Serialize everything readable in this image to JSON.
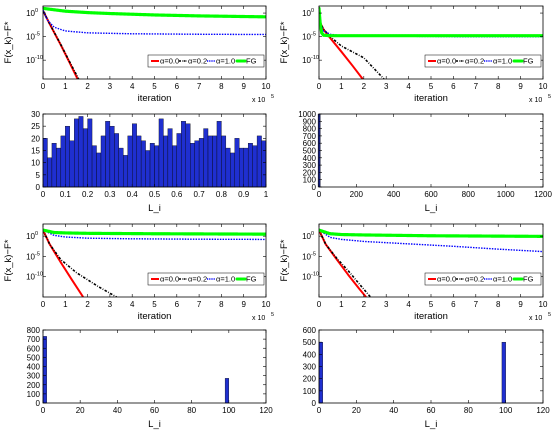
{
  "colors": {
    "alpha0": "#ff0000",
    "alpha02": "#000000",
    "alpha1": "#0000ff",
    "fg": "#00ff00",
    "bar_fill": "#1f2fd0",
    "bar_edge": "#000000"
  },
  "chart_data": [
    {
      "type": "line",
      "ylabel": "F(x_k)−F*",
      "xlabel": "iteration",
      "x_exponent": "x 10",
      "x_exponent_power": "5",
      "xlim": [
        0,
        10
      ],
      "ylim_exp": [
        -14,
        1.5
      ],
      "xticks": [
        "0",
        "1",
        "2",
        "3",
        "4",
        "5",
        "6",
        "7",
        "8",
        "9",
        "10"
      ],
      "yticks": [
        {
          "exp": 0,
          "label": "10"
        },
        {
          "exp": -5,
          "label": "10"
        },
        {
          "exp": -10,
          "label": "10"
        }
      ],
      "ytick_powers": [
        "0",
        "-5",
        "-10"
      ],
      "legend": [
        "α=0.0",
        "α=0.2",
        "α=1.0",
        "FG"
      ],
      "series": [
        {
          "name": "α=0.0",
          "style": "solid",
          "points": [
            [
              0,
              0.5
            ],
            [
              0.3,
              -2.3
            ],
            [
              0.8,
              -6.8
            ],
            [
              1.2,
              -10.6
            ],
            [
              1.55,
              -14
            ]
          ]
        },
        {
          "name": "α=0.2",
          "style": "dashdot",
          "points": [
            [
              0,
              0.5
            ],
            [
              0.3,
              -2.3
            ],
            [
              0.8,
              -6.7
            ],
            [
              1.2,
              -10.4
            ],
            [
              1.6,
              -14
            ]
          ]
        },
        {
          "name": "α=1.0",
          "style": "dotted",
          "points": [
            [
              0,
              0.6
            ],
            [
              0.2,
              -1.5
            ],
            [
              0.5,
              -3.0
            ],
            [
              1,
              -3.8
            ],
            [
              2,
              -4.2
            ],
            [
              4,
              -4.4
            ],
            [
              7,
              -4.5
            ],
            [
              10,
              -4.55
            ]
          ]
        },
        {
          "name": "FG",
          "style": "marker",
          "points": [
            [
              0,
              1
            ],
            [
              0.5,
              0.7
            ],
            [
              1,
              0.4
            ],
            [
              2,
              0.1
            ],
            [
              3,
              -0.1
            ],
            [
              5,
              -0.4
            ],
            [
              7,
              -0.6
            ],
            [
              10,
              -0.8
            ]
          ]
        }
      ]
    },
    {
      "type": "line",
      "ylabel": "F(x_k)−F*",
      "xlabel": "iteration",
      "x_exponent": "x 10",
      "x_exponent_power": "5",
      "xlim": [
        0,
        10
      ],
      "ylim_exp": [
        -14,
        1.5
      ],
      "xticks": [
        "0",
        "1",
        "2",
        "3",
        "4",
        "5",
        "6",
        "7",
        "8",
        "9",
        "10"
      ],
      "yticks": [
        {
          "exp": 0,
          "label": "10"
        },
        {
          "exp": -5,
          "label": "10"
        },
        {
          "exp": -10,
          "label": "10"
        }
      ],
      "ytick_powers": [
        "0",
        "-5",
        "-10"
      ],
      "legend": [
        "α=0.0",
        "α=0.2",
        "α=1.0",
        "FG"
      ],
      "series": [
        {
          "name": "α=0.0",
          "style": "solid",
          "points": [
            [
              0,
              -1.5
            ],
            [
              0.2,
              -3.5
            ],
            [
              0.5,
              -5.3
            ],
            [
              1,
              -8.2
            ],
            [
              1.5,
              -11.2
            ],
            [
              1.95,
              -14
            ]
          ]
        },
        {
          "name": "α=0.2",
          "style": "dashdot",
          "points": [
            [
              0,
              -1.5
            ],
            [
              0.2,
              -3.4
            ],
            [
              0.5,
              -5.0
            ],
            [
              1,
              -7.0
            ],
            [
              2,
              -9.5
            ],
            [
              2.5,
              -12
            ],
            [
              2.9,
              -14
            ]
          ]
        },
        {
          "name": "α=1.0",
          "style": "dotted",
          "points": [
            [
              0,
              -1.5
            ],
            [
              0.2,
              -3.8
            ],
            [
              0.5,
              -4.5
            ],
            [
              1,
              -4.8
            ],
            [
              3,
              -4.9
            ],
            [
              6,
              -5.0
            ],
            [
              10,
              -5.0
            ]
          ]
        },
        {
          "name": "FG",
          "style": "marker",
          "points": [
            [
              0,
              1.0
            ],
            [
              0.05,
              -2.0
            ],
            [
              0.12,
              -4.2
            ],
            [
              0.2,
              -4.7
            ],
            [
              0.5,
              -4.8
            ],
            [
              2,
              -4.8
            ],
            [
              5,
              -4.8
            ],
            [
              10,
              -4.8
            ]
          ]
        }
      ]
    },
    {
      "type": "bar",
      "xlabel": "L_i",
      "xlim": [
        0,
        1
      ],
      "ylim": [
        0,
        30
      ],
      "xticks": [
        "0",
        "0.1",
        "0.2",
        "0.3",
        "0.4",
        "0.5",
        "0.6",
        "0.7",
        "0.8",
        "0.9",
        "1"
      ],
      "yticks": [
        "0",
        "5",
        "10",
        "15",
        "20",
        "25",
        "30"
      ],
      "bin_width": 0.02,
      "values": [
        20,
        12,
        18,
        16,
        21,
        25,
        19,
        28,
        29,
        24,
        28,
        17,
        14,
        21,
        27,
        25,
        22,
        16,
        13,
        21,
        26,
        21,
        19,
        15,
        18,
        17,
        28,
        21,
        24,
        17,
        22,
        27,
        26,
        18,
        19,
        20,
        24,
        21,
        21,
        27,
        21,
        16,
        14,
        20,
        16,
        16,
        18,
        17,
        21,
        19
      ]
    },
    {
      "type": "bar",
      "xlabel": "L_i",
      "xlim": [
        0,
        1200
      ],
      "ylim": [
        0,
        1000
      ],
      "xticks": [
        "0",
        "200",
        "400",
        "600",
        "800",
        "1000",
        "1200"
      ],
      "yticks": [
        "0",
        "100",
        "200",
        "300",
        "400",
        "500",
        "600",
        "700",
        "800",
        "900",
        "1000"
      ],
      "bars": [
        {
          "x": 1,
          "width": 12,
          "value": 1000
        }
      ]
    },
    {
      "type": "line",
      "ylabel": "F(x_k)−F*",
      "xlabel": "iteration",
      "x_exponent": "x 10",
      "x_exponent_power": "5",
      "xlim": [
        0,
        10
      ],
      "ylim_exp": [
        -15,
        3
      ],
      "xticks": [
        "0",
        "1",
        "2",
        "3",
        "4",
        "5",
        "6",
        "7",
        "8",
        "9",
        "10"
      ],
      "yticks": [
        {
          "exp": 0,
          "label": "10"
        },
        {
          "exp": -5,
          "label": "10"
        },
        {
          "exp": -10,
          "label": "10"
        }
      ],
      "ytick_powers": [
        "0",
        "-5",
        "-10"
      ],
      "legend": [
        "α=0.0",
        "α=0.2",
        "α=1.0",
        "FG"
      ],
      "series": [
        {
          "name": "α=0.0",
          "style": "solid",
          "points": [
            [
              0,
              1.5
            ],
            [
              0.3,
              -2.0
            ],
            [
              0.8,
              -6.5
            ],
            [
              1.3,
              -10.8
            ],
            [
              1.8,
              -15
            ]
          ]
        },
        {
          "name": "α=0.2",
          "style": "dashdot",
          "points": [
            [
              0,
              1.5
            ],
            [
              0.3,
              -2.0
            ],
            [
              0.8,
              -5.8
            ],
            [
              1.5,
              -9.0
            ],
            [
              2.5,
              -12.5
            ],
            [
              3.3,
              -15
            ]
          ]
        },
        {
          "name": "α=1.0",
          "style": "dotted",
          "points": [
            [
              0,
              1.5
            ],
            [
              0.5,
              0.2
            ],
            [
              1,
              -0.2
            ],
            [
              2,
              -0.5
            ],
            [
              4,
              -0.65
            ],
            [
              7,
              -0.75
            ],
            [
              10,
              -0.8
            ]
          ]
        },
        {
          "name": "FG",
          "style": "marker",
          "points": [
            [
              0,
              1.5
            ],
            [
              0.5,
              0.9
            ],
            [
              1,
              0.8
            ],
            [
              2,
              0.7
            ],
            [
              5,
              0.6
            ],
            [
              10,
              0.5
            ]
          ]
        }
      ]
    },
    {
      "type": "line",
      "ylabel": "F(x_k)−F*",
      "xlabel": "iteration",
      "x_exponent": "x 10",
      "x_exponent_power": "5",
      "xlim": [
        0,
        10
      ],
      "ylim_exp": [
        -15,
        3
      ],
      "xticks": [
        "0",
        "1",
        "2",
        "3",
        "4",
        "5",
        "6",
        "7",
        "8",
        "9",
        "10"
      ],
      "yticks": [
        {
          "exp": 0,
          "label": "10"
        },
        {
          "exp": -5,
          "label": "10"
        },
        {
          "exp": -10,
          "label": "10"
        }
      ],
      "ytick_powers": [
        "0",
        "-5",
        "-10"
      ],
      "legend": [
        "α=0.0",
        "α=0.2",
        "α=1.0",
        "FG"
      ],
      "series": [
        {
          "name": "α=0.0",
          "style": "solid",
          "points": [
            [
              0,
              1.5
            ],
            [
              0.3,
              -2.0
            ],
            [
              0.8,
              -5.8
            ],
            [
              1.3,
              -9.5
            ],
            [
              1.8,
              -13
            ],
            [
              2.1,
              -15
            ]
          ]
        },
        {
          "name": "α=0.2",
          "style": "dashdot",
          "points": [
            [
              0,
              1.5
            ],
            [
              0.3,
              -2.0
            ],
            [
              0.8,
              -5.5
            ],
            [
              1.3,
              -8.5
            ],
            [
              1.8,
              -11.8
            ],
            [
              2.3,
              -15
            ]
          ]
        },
        {
          "name": "α=1.0",
          "style": "dotted",
          "points": [
            [
              0,
              1.5
            ],
            [
              0.5,
              -0.3
            ],
            [
              1,
              -0.8
            ],
            [
              2,
              -1.3
            ],
            [
              4,
              -1.9
            ],
            [
              6,
              -2.5
            ],
            [
              8,
              -3.2
            ],
            [
              10,
              -3.8
            ]
          ]
        },
        {
          "name": "FG",
          "style": "marker",
          "points": [
            [
              0,
              1.5
            ],
            [
              0.5,
              0.6
            ],
            [
              1,
              0.4
            ],
            [
              2,
              0.3
            ],
            [
              5,
              0.1
            ],
            [
              10,
              -0.05
            ]
          ]
        }
      ]
    },
    {
      "type": "bar",
      "xlabel": "L_i",
      "xlim": [
        0,
        120
      ],
      "ylim": [
        0,
        800
      ],
      "xticks": [
        "0",
        "20",
        "40",
        "60",
        "80",
        "100",
        "120"
      ],
      "yticks": [
        "0",
        "100",
        "200",
        "300",
        "400",
        "500",
        "600",
        "700",
        "800"
      ],
      "bars": [
        {
          "x": 1,
          "width": 2,
          "value": 730
        },
        {
          "x": 99,
          "width": 2,
          "value": 270
        }
      ]
    },
    {
      "type": "bar",
      "xlabel": "L_i",
      "xlim": [
        0,
        120
      ],
      "ylim": [
        0,
        600
      ],
      "xticks": [
        "0",
        "20",
        "40",
        "60",
        "80",
        "100",
        "120"
      ],
      "yticks": [
        "0",
        "100",
        "200",
        "300",
        "400",
        "500",
        "600"
      ],
      "bars": [
        {
          "x": 1,
          "width": 2,
          "value": 500
        },
        {
          "x": 99,
          "width": 2,
          "value": 500
        }
      ]
    }
  ]
}
